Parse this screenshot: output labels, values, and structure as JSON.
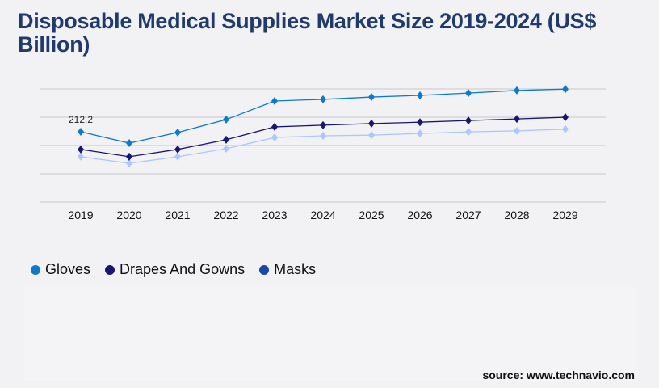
{
  "title": "Disposable Medical Supplies Market Size 2019-2024 (US$ Billion)",
  "source": "source: www.technavio.com",
  "chart_data": {
    "type": "line",
    "title": "Disposable Medical Supplies Market Size 2019-2024 (US$ Billion)",
    "xlabel": "",
    "ylabel": "",
    "categories": [
      "2019",
      "2020",
      "2021",
      "2022",
      "2023",
      "2024",
      "2025",
      "2026",
      "2027",
      "2028",
      "2029"
    ],
    "ylim": [
      0,
      341.5
    ],
    "grid": true,
    "legend_position": "bottom-left",
    "series": [
      {
        "name": "Gloves",
        "line_color": "#0a7ad1",
        "legend_color": "#0a7ad1",
        "values": [
          212.2,
          178,
          210,
          249,
          305,
          310,
          317,
          322,
          329,
          337,
          341
        ]
      },
      {
        "name": "Drapes And Gowns",
        "line_color": "#1a1575",
        "legend_color": "#1a1575",
        "values": [
          159,
          137,
          159,
          188,
          227,
          232,
          237,
          241,
          246,
          251,
          256
        ]
      },
      {
        "name": "Masks",
        "line_color": "#a9c8ff",
        "legend_color": "#1a47a8",
        "values": [
          137,
          117,
          137,
          161,
          195,
          200,
          202,
          207,
          212,
          215,
          220
        ]
      }
    ],
    "annotations": [
      {
        "series": "Gloves",
        "category": "2019",
        "text": "212.2"
      }
    ]
  }
}
